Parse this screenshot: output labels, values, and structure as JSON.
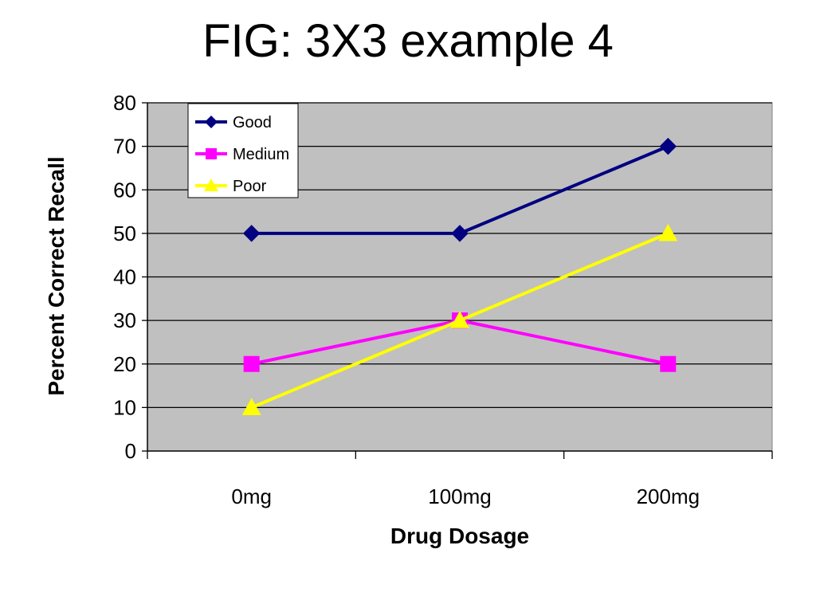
{
  "slide": {
    "title": "FIG: 3X3 example 4"
  },
  "chart_data": {
    "type": "line",
    "title": "",
    "xlabel": "Drug Dosage",
    "ylabel": "Percent Correct Recall",
    "categories": [
      "0mg",
      "100mg",
      "200mg"
    ],
    "ylim": [
      0,
      80
    ],
    "yticks": [
      0,
      10,
      20,
      30,
      40,
      50,
      60,
      70,
      80
    ],
    "grid": true,
    "plot_background": "#C0C0C0",
    "legend_position": "top-left",
    "series": [
      {
        "name": "Good",
        "values": [
          50,
          50,
          70
        ],
        "color": "#000080",
        "marker": "diamond"
      },
      {
        "name": "Medium",
        "values": [
          20,
          30,
          20
        ],
        "color": "#FF00FF",
        "marker": "square"
      },
      {
        "name": "Poor",
        "values": [
          10,
          30,
          50
        ],
        "color": "#FFFF00",
        "marker": "triangle"
      }
    ]
  }
}
